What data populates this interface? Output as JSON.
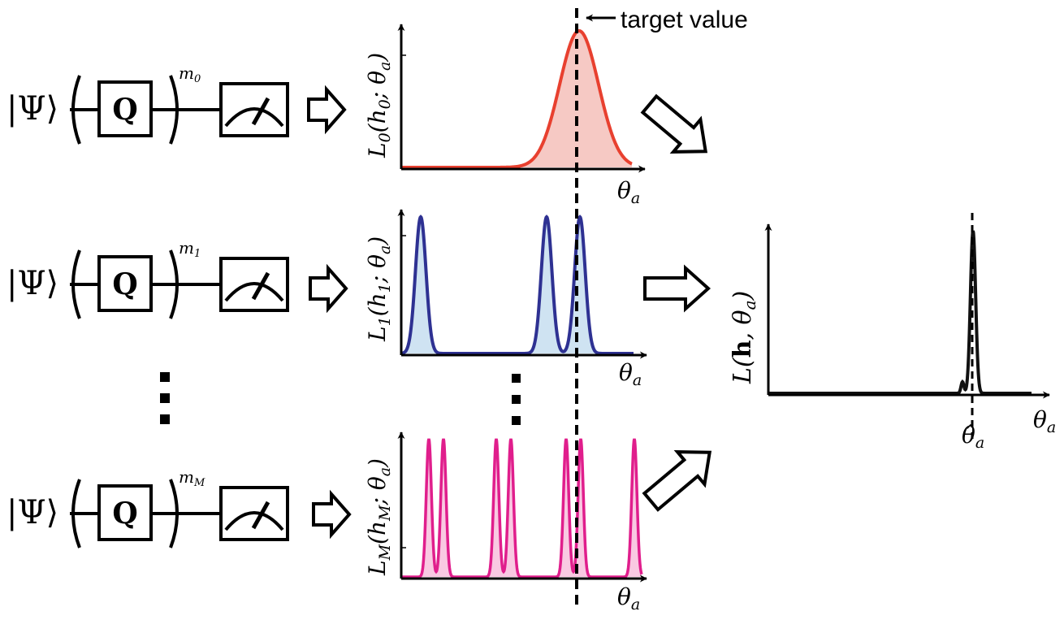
{
  "colors": {
    "ink": "#000000",
    "l0_line": "#e8402f",
    "l0_fill": "#f6c9c4",
    "l1_line": "#2e3192",
    "l1_fill": "#cfe3f2",
    "lm_line": "#e01e8c",
    "lm_fill": "#f9c9e2",
    "combined_line": "#111111"
  },
  "circuits": [
    {
      "state": "|Ψ⟩",
      "gate": "Q",
      "power_base": "m",
      "power_sub": "0"
    },
    {
      "state": "|Ψ⟩",
      "gate": "Q",
      "power_base": "m",
      "power_sub": "1"
    },
    {
      "state": "|Ψ⟩",
      "gate": "Q",
      "power_base": "m",
      "power_sub": "M"
    }
  ],
  "plots": [
    {
      "ylabel_base": "L",
      "ylabel_sub": "0",
      "ylabel_arg": "(h",
      "ylabel_arg_sub": "0",
      "ylabel_tail": "; θ",
      "ylabel_tail_sub": "a",
      "ylabel_close": ")",
      "xlabel": "θ",
      "xlabel_sub": "a"
    },
    {
      "ylabel_base": "L",
      "ylabel_sub": "1",
      "ylabel_arg": "(h",
      "ylabel_arg_sub": "1",
      "ylabel_tail": "; θ",
      "ylabel_tail_sub": "a",
      "ylabel_close": ")",
      "xlabel": "θ",
      "xlabel_sub": "a"
    },
    {
      "ylabel_base": "L",
      "ylabel_sub": "M",
      "ylabel_arg": "(h",
      "ylabel_arg_sub": "M",
      "ylabel_tail": "; θ",
      "ylabel_tail_sub": "a",
      "ylabel_close": ")",
      "xlabel": "θ",
      "xlabel_sub": "a"
    }
  ],
  "combined": {
    "ylabel_base": "L(",
    "ylabel_bold": "h",
    "ylabel_rest": ", θ",
    "ylabel_sub": "a",
    "ylabel_close": ")",
    "xlabel": "θ",
    "xlabel_sub": "a",
    "estimate": "θ̂",
    "estimate_sub": "a"
  },
  "target_label": "target value"
}
